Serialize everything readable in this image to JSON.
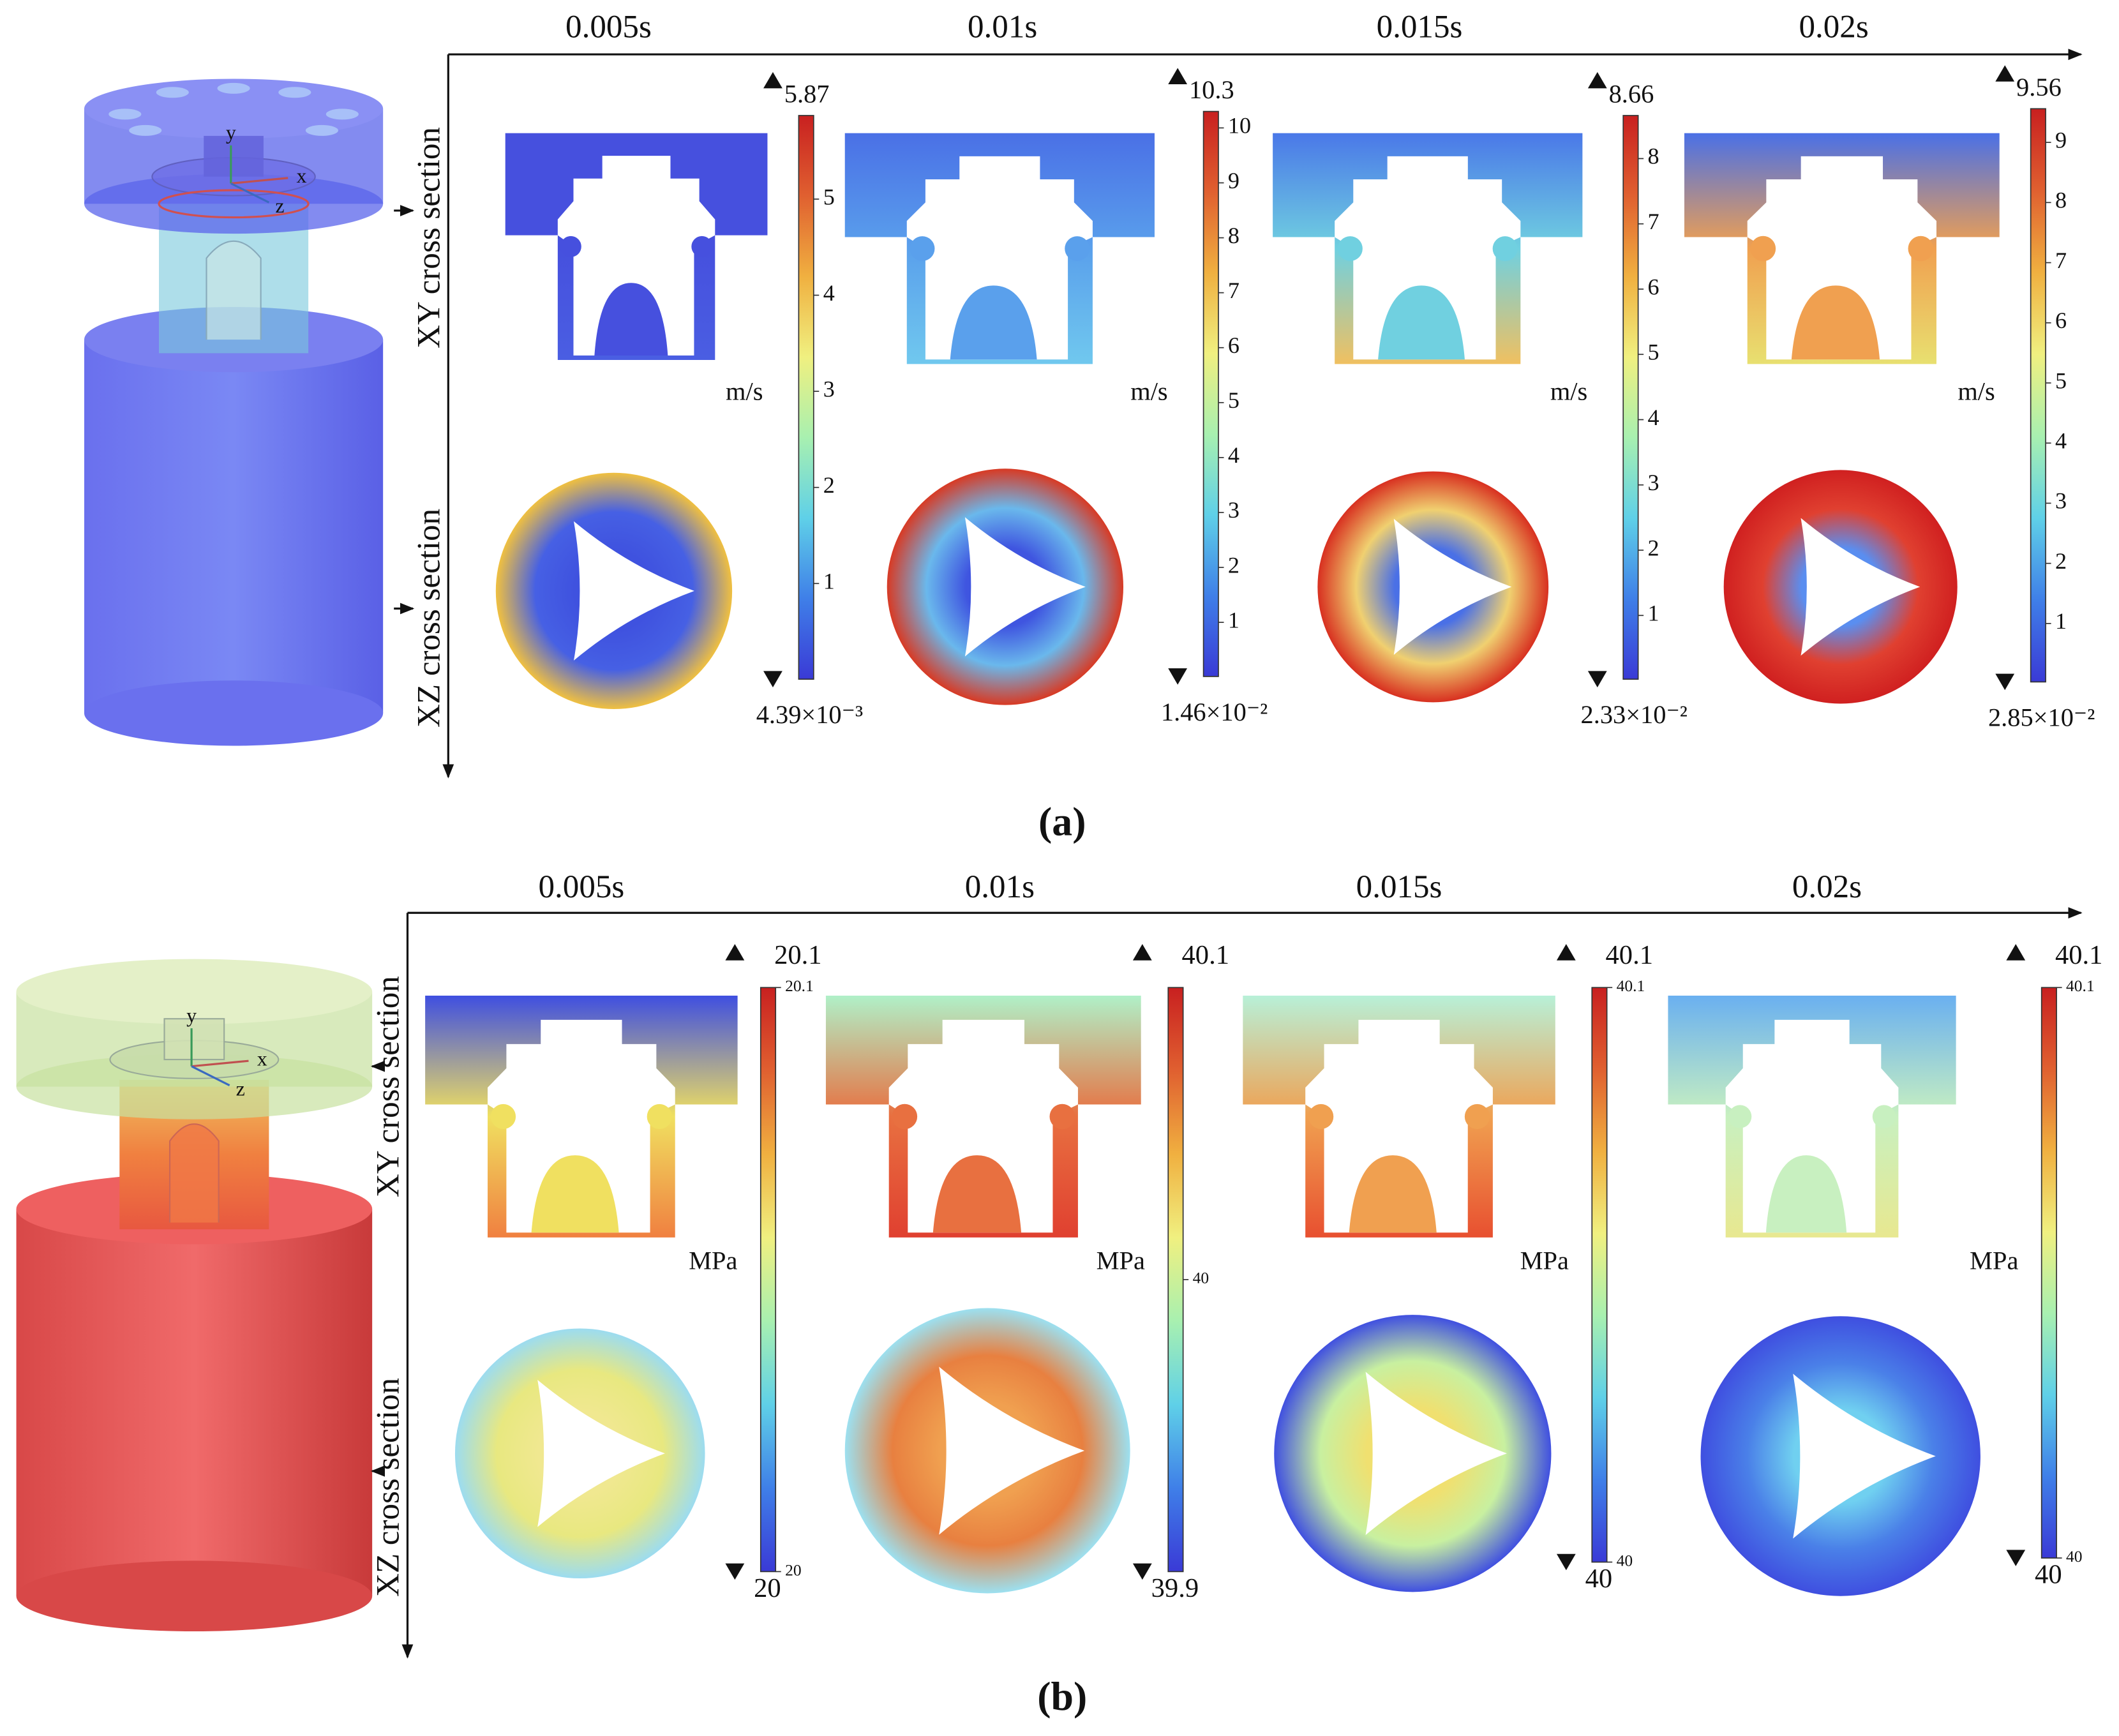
{
  "panels": [
    {
      "caption": "(a)",
      "times": [
        "0.005s",
        "0.01s",
        "0.015s",
        "0.02s"
      ],
      "rows": [
        "XY cross section",
        "XZ cross section"
      ],
      "model_axes": [
        "y",
        "x",
        "z"
      ],
      "colorbars": [
        {
          "unit": "m/s",
          "max": 5.87,
          "min": {
            "value": 0.00439,
            "label": "4.39×10⁻³"
          },
          "ticks": [
            1,
            2,
            3,
            4,
            5
          ]
        },
        {
          "unit": "m/s",
          "max": 10.3,
          "min": {
            "value": 0.0146,
            "label": "1.46×10⁻²"
          },
          "ticks": [
            1,
            2,
            3,
            4,
            5,
            6,
            7,
            8,
            9,
            10
          ]
        },
        {
          "unit": "m/s",
          "max": 8.66,
          "min": {
            "value": 0.0233,
            "label": "2.33×10⁻²"
          },
          "ticks": [
            1,
            2,
            3,
            4,
            5,
            6,
            7,
            8
          ]
        },
        {
          "unit": "m/s",
          "max": 9.56,
          "min": {
            "value": 0.0285,
            "label": "2.85×10⁻²"
          },
          "ticks": [
            1,
            2,
            3,
            4,
            5,
            6,
            7,
            8,
            9
          ]
        }
      ]
    },
    {
      "caption": "(b)",
      "times": [
        "0.005s",
        "0.01s",
        "0.015s",
        "0.02s"
      ],
      "rows": [
        "XY cross section",
        "XZ cross section"
      ],
      "model_axes": [
        "y",
        "x",
        "z"
      ],
      "colorbars": [
        {
          "unit": "MPa",
          "max": 20.1,
          "min": 20,
          "ticks": [
            20.1,
            20
          ]
        },
        {
          "unit": "MPa",
          "max": 40.1,
          "min": 39.9,
          "ticks": [
            40
          ]
        },
        {
          "unit": "MPa",
          "max": 40.1,
          "min": 40,
          "ticks": [
            40.1,
            40
          ]
        },
        {
          "unit": "MPa",
          "max": 40.1,
          "min": 40,
          "ticks": [
            40.1,
            40
          ]
        }
      ]
    }
  ]
}
